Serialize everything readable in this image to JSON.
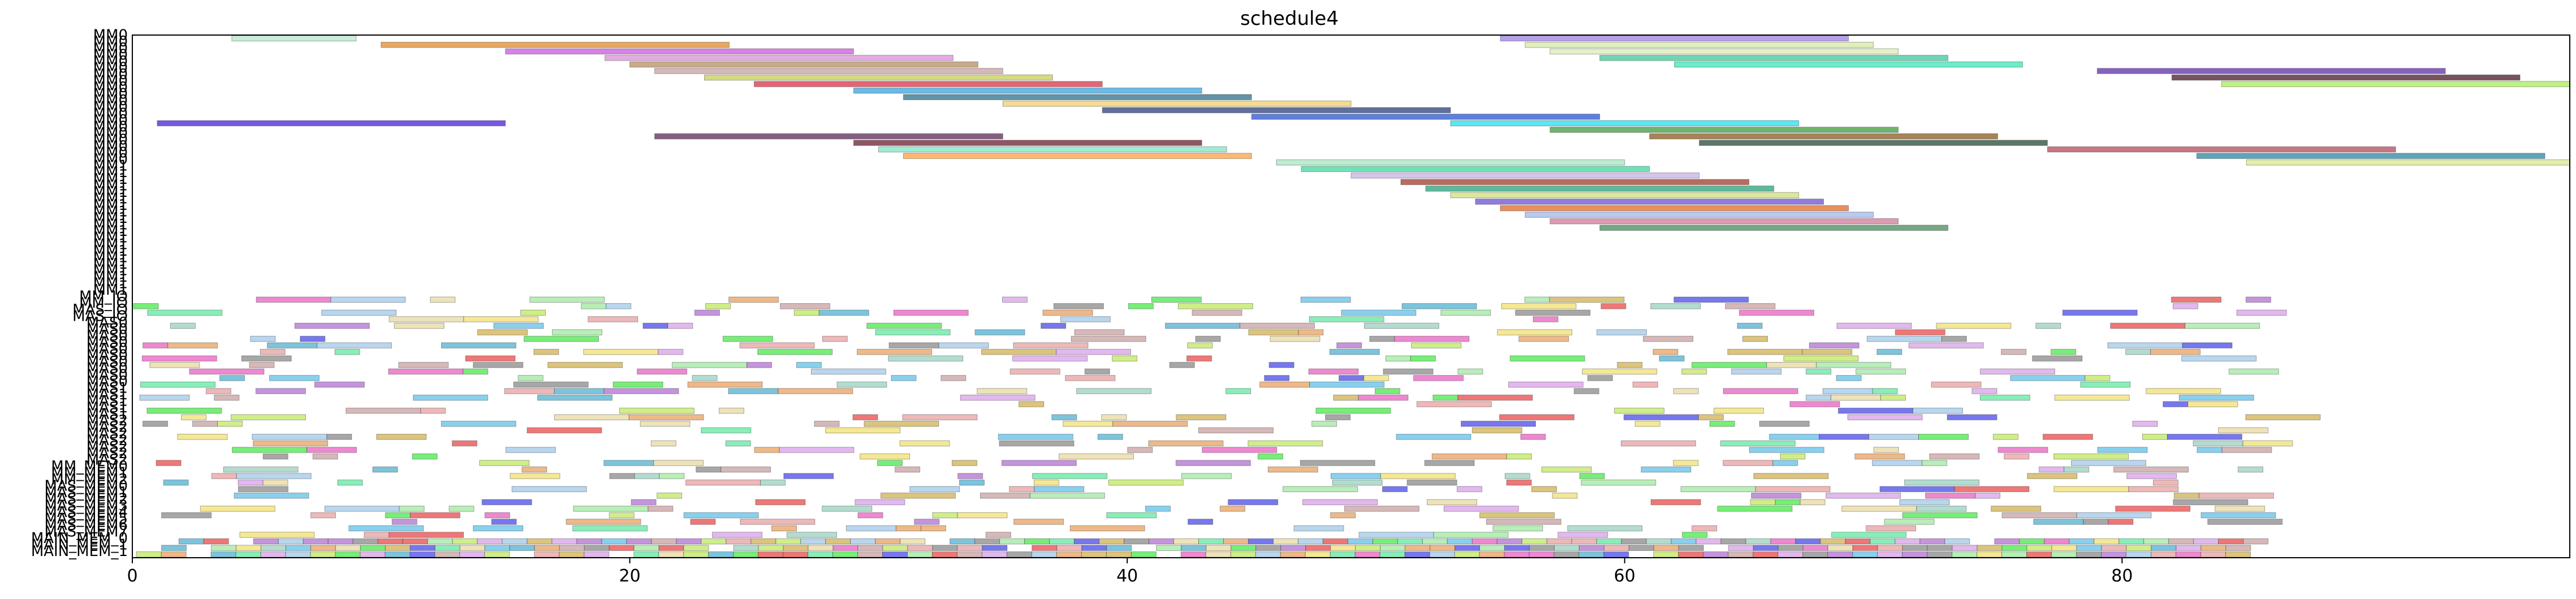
{
  "chart_data": {
    "type": "gantt",
    "title": "schedule4",
    "xlabel": "",
    "ylabel": "",
    "xlim": [
      0,
      98
    ],
    "xticks": [
      0,
      20,
      40,
      60,
      80
    ],
    "grid": false,
    "legend": "none",
    "rows": [
      "MM0",
      "MM0",
      "MM0",
      "MM0",
      "MM0",
      "MM0",
      "MM0",
      "MM0",
      "MM0",
      "MM0",
      "MM0",
      "MM0",
      "MM0",
      "MM0",
      "MM0",
      "MM0",
      "MM0",
      "MM0",
      "MM0",
      "MM0",
      "MM1",
      "MM1",
      "MM1",
      "MM1",
      "MM1",
      "MM1",
      "MM1",
      "MM1",
      "MM1",
      "MM1",
      "MM1",
      "MM1",
      "MM1",
      "MM1",
      "MM1",
      "MM1",
      "MM1",
      "MM1",
      "MM1",
      "MM1",
      "MM_IO",
      "MM_IO",
      "MAS_IO",
      "MAS_IO",
      "MAS0",
      "MAS0",
      "MAS0",
      "MAS0",
      "MAS0",
      "MAS0",
      "MAS0",
      "MAS0",
      "MAS0",
      "MAS0",
      "MAS1",
      "MAS1",
      "MAS1",
      "MAS1",
      "MAS1",
      "MAS2",
      "MAS2",
      "MAS2",
      "MAS2",
      "MAS2",
      "MAS2",
      "MAS2",
      "MM_MEM0",
      "MM_MEM1",
      "MM_MEM2",
      "MAS_MEM0",
      "MAS_MEM1",
      "MAS_MEM2",
      "MAS_MEM3",
      "MAS_MEM4",
      "MAS_MEM5",
      "MAS_MEM6",
      "MAS_MEM7",
      "MAIN_MEM_0",
      "MAIN_MEM_1",
      "MAIN_MEM_1"
    ],
    "row_labels_shown": [
      "MM0",
      "MM0",
      "MM0",
      "MM0",
      "MM0",
      "MM0",
      "MM0",
      "MM0",
      "MM0",
      "MM0",
      "MM0",
      "MM0",
      "MM0",
      "MM0",
      "MM0",
      "MM0",
      "MM0",
      "MM0",
      "MM0",
      "MM0",
      "MM1",
      "MM1",
      "MM1",
      "MM1",
      "MM1",
      "MM1",
      "MM1",
      "MM1",
      "MM1",
      "MM1",
      "MM1",
      "MM1",
      "MM1",
      "MM1",
      "MM1",
      "MM1",
      "MM1",
      "MM1",
      "MM1",
      "MM1",
      "MM_IO",
      "MM_IO",
      "MAS_IO",
      "MAS_IO",
      "MAS0",
      "MAS0",
      "MAS0",
      "MAS0",
      "MAS0",
      "MAS0",
      "MAS0",
      "MAS0",
      "MAS0",
      "MAS0",
      "MAS1",
      "MAS1",
      "MAS1",
      "MAS1",
      "MAS1",
      "MAS2",
      "MAS2",
      "MAS2",
      "MAS2",
      "MAS2",
      "MAS2",
      "MAS2",
      "MM_MEM0",
      "MM_MEM1",
      "MM_MEM2",
      "MAS_MEM0",
      "MAS_MEM1",
      "MAS_MEM2",
      "MAS_MEM3",
      "MAS_MEM4",
      "MAS_MEM5",
      "MAS_MEM6",
      "MAS_MEM7",
      "MAIN_MEM_0",
      "MAIN_MEM_1",
      "MAIN_MEM_1"
    ],
    "bars": [
      {
        "row": 0,
        "start": 4,
        "end": 9,
        "color": "#b8e6c9"
      },
      {
        "row": 0,
        "start": 55,
        "end": 69,
        "color": "#9b7fe0"
      },
      {
        "row": 1,
        "start": 10,
        "end": 24,
        "color": "#e08a2c"
      },
      {
        "row": 1,
        "start": 56,
        "end": 70,
        "color": "#d7e8a8"
      },
      {
        "row": 2,
        "start": 15,
        "end": 29,
        "color": "#cc55dd"
      },
      {
        "row": 2,
        "start": 57,
        "end": 71,
        "color": "#d8edb2"
      },
      {
        "row": 3,
        "start": 19,
        "end": 33,
        "color": "#d98fd6"
      },
      {
        "row": 3,
        "start": 59,
        "end": 73,
        "color": "#40c79c"
      },
      {
        "row": 4,
        "start": 20,
        "end": 34,
        "color": "#b58f63"
      },
      {
        "row": 4,
        "start": 62,
        "end": 76,
        "color": "#3be6b5"
      },
      {
        "row": 5,
        "start": 21,
        "end": 35,
        "color": "#c9a0a0"
      },
      {
        "row": 5,
        "start": 79,
        "end": 93,
        "color": "#5c2faa"
      },
      {
        "row": 6,
        "start": 23,
        "end": 37,
        "color": "#c8ce55"
      },
      {
        "row": 6,
        "start": 82,
        "end": 96,
        "color": "#4a1a2a"
      },
      {
        "row": 7,
        "start": 25,
        "end": 39,
        "color": "#d9334a"
      },
      {
        "row": 7,
        "start": 84,
        "end": 98,
        "color": "#a9ee55"
      },
      {
        "row": 8,
        "start": 29,
        "end": 43,
        "color": "#3aa3dd"
      },
      {
        "row": 9,
        "start": 31,
        "end": 45,
        "color": "#2d6f8a"
      },
      {
        "row": 10,
        "start": 35,
        "end": 49,
        "color": "#f2cf6b"
      },
      {
        "row": 11,
        "start": 39,
        "end": 53,
        "color": "#2b3f7a"
      },
      {
        "row": 12,
        "start": 45,
        "end": 59,
        "color": "#2a55cc"
      },
      {
        "row": 13,
        "start": 1,
        "end": 15,
        "color": "#4b1fd8"
      },
      {
        "row": 13,
        "start": 53,
        "end": 67,
        "color": "#1fe0f0"
      },
      {
        "row": 14,
        "start": 57,
        "end": 71,
        "color": "#3d9a3d"
      },
      {
        "row": 15,
        "start": 21,
        "end": 35,
        "color": "#5e2a55"
      },
      {
        "row": 15,
        "start": 61,
        "end": 75,
        "color": "#8a5a20"
      },
      {
        "row": 16,
        "start": 29,
        "end": 43,
        "color": "#6a1d2f"
      },
      {
        "row": 16,
        "start": 63,
        "end": 77,
        "color": "#244a34"
      },
      {
        "row": 17,
        "start": 30,
        "end": 44,
        "color": "#7fe6c4"
      },
      {
        "row": 17,
        "start": 77,
        "end": 91,
        "color": "#b34a5a"
      },
      {
        "row": 18,
        "start": 31,
        "end": 45,
        "color": "#ffa040"
      },
      {
        "row": 18,
        "start": 83,
        "end": 97,
        "color": "#2a86a0"
      },
      {
        "row": 19,
        "start": 46,
        "end": 60,
        "color": "#a8e6c0"
      },
      {
        "row": 19,
        "start": 85,
        "end": 99,
        "color": "#d8e890"
      },
      {
        "row": 20,
        "start": 47,
        "end": 61,
        "color": "#44d7a0"
      },
      {
        "row": 21,
        "start": 49,
        "end": 63,
        "color": "#c7b0e8"
      },
      {
        "row": 22,
        "start": 51,
        "end": 65,
        "color": "#a03a2a"
      },
      {
        "row": 23,
        "start": 52,
        "end": 66,
        "color": "#2aa07a"
      },
      {
        "row": 24,
        "start": 53,
        "end": 67,
        "color": "#cfe07a"
      },
      {
        "row": 25,
        "start": 54,
        "end": 68,
        "color": "#6f4fd0"
      },
      {
        "row": 26,
        "start": 55,
        "end": 69,
        "color": "#e06a2a"
      },
      {
        "row": 27,
        "start": 56,
        "end": 70,
        "color": "#a0b8e8"
      },
      {
        "row": 28,
        "start": 57,
        "end": 71,
        "color": "#d07a9a"
      },
      {
        "row": 29,
        "start": 59,
        "end": 73,
        "color": "#4a8a5a"
      }
    ],
    "dense_rows_note": "",
    "dense_colors": [
      "#e8a0a0",
      "#a0c8e8",
      "#a0e8a0",
      "#e8d8a0",
      "#d8a0e8",
      "#e8a060",
      "#60c0e8",
      "#60e8a0",
      "#e860c0",
      "#c0e860",
      "#8a8a8a",
      "#e84a4a",
      "#4a4ae8",
      "#4ae84a",
      "#c8a0a0",
      "#9ad0c0",
      "#f0e070",
      "#b070d0",
      "#50b0d0",
      "#d0b050"
    ]
  }
}
